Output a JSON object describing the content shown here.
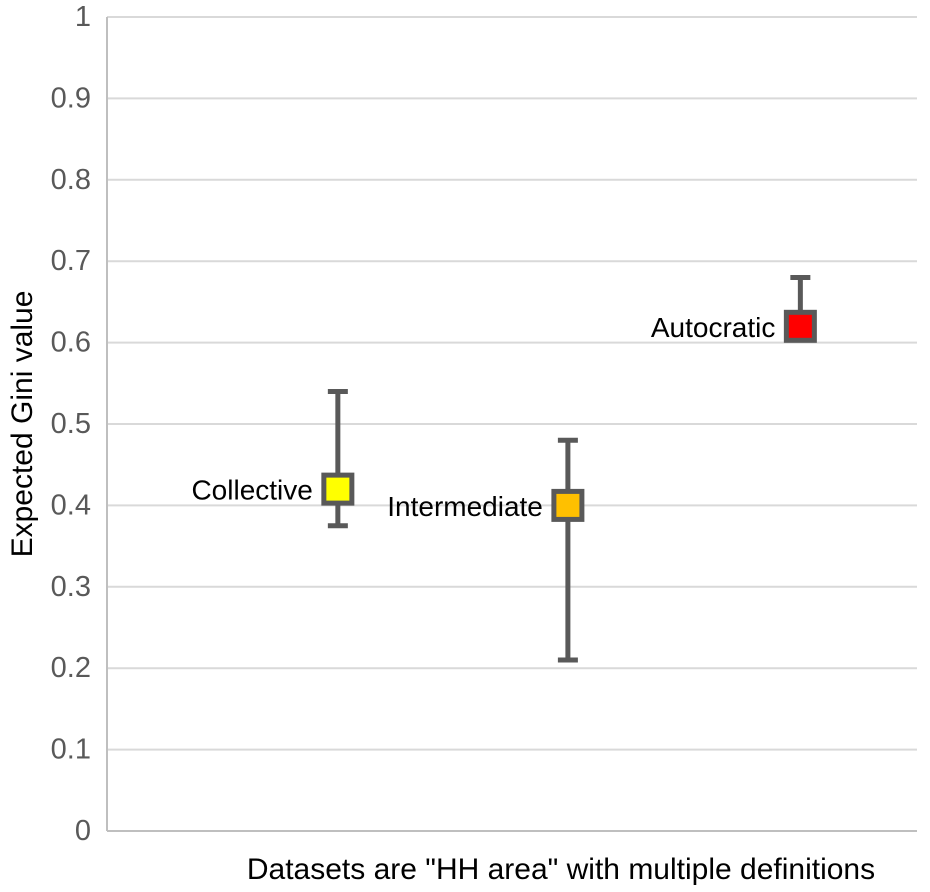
{
  "chart_data": {
    "type": "scatter",
    "title": "",
    "xlabel": "Datasets are \"HH area\" with multiple definitions",
    "ylabel": "Expected Gini value",
    "ylim": [
      0,
      1
    ],
    "grid": true,
    "legend_position": "inline-labels",
    "yticks": [
      {
        "v": 0,
        "label": "0"
      },
      {
        "v": 0.1,
        "label": "0.1"
      },
      {
        "v": 0.2,
        "label": "0.2"
      },
      {
        "v": 0.3,
        "label": "0.3"
      },
      {
        "v": 0.4,
        "label": "0.4"
      },
      {
        "v": 0.5,
        "label": "0.5"
      },
      {
        "v": 0.6,
        "label": "0.6"
      },
      {
        "v": 0.7,
        "label": "0.7"
      },
      {
        "v": 0.8,
        "label": "0.8"
      },
      {
        "v": 0.9,
        "label": "0.9"
      },
      {
        "v": 1,
        "label": "1"
      }
    ],
    "series": [
      {
        "name": "Collective",
        "value": 0.42,
        "whisker_high": 0.54,
        "whisker_low": 0.375,
        "marker_color": "#ffff00",
        "x_frac": 0.285
      },
      {
        "name": "Intermediate",
        "value": 0.4,
        "whisker_high": 0.48,
        "whisker_low": 0.21,
        "marker_color": "#ffc000",
        "x_frac": 0.569
      },
      {
        "name": "Autocratic",
        "value": 0.62,
        "whisker_high": 0.68,
        "whisker_low": null,
        "marker_color": "#ff0000",
        "x_frac": 0.856
      }
    ],
    "style": {
      "grid_color": "#d9d9d9",
      "axis_color": "#bfbfbf",
      "whisker_color": "#595959",
      "marker_border_color": "#595959",
      "tick_label_color": "#595959",
      "text_color": "#000000",
      "background": "#ffffff"
    }
  }
}
